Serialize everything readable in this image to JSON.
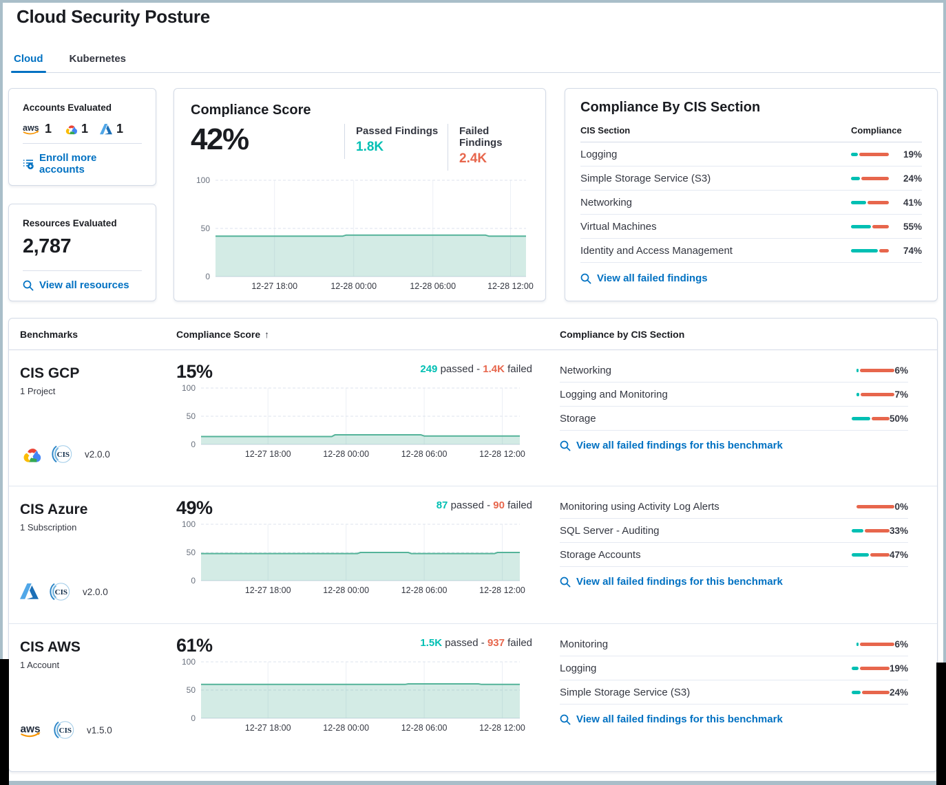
{
  "strings": {
    "passed": "passed",
    "failed": "failed",
    "sep": "-"
  },
  "colors": {
    "teal": "#00BFB3",
    "red": "#E7664C",
    "link_blue": "#0071C2",
    "trend_line": "#54B399",
    "frame": "#A9BEC9"
  },
  "header": {
    "title": "Cloud Security Posture",
    "tabs": [
      {
        "label": "Cloud"
      },
      {
        "label": "Kubernetes"
      }
    ]
  },
  "accounts": {
    "title": "Accounts Evaluated",
    "items": [
      {
        "provider": "aws",
        "count": "1"
      },
      {
        "provider": "gcp",
        "count": "1"
      },
      {
        "provider": "azure",
        "count": "1"
      }
    ],
    "link": "Enroll more accounts"
  },
  "resources": {
    "title": "Resources Evaluated",
    "value": "2,787",
    "link": "View all resources"
  },
  "score": {
    "title": "Compliance Score",
    "value": "42%",
    "passed_label": "Passed Findings",
    "passed_value": "1.8K",
    "failed_label": "Failed Findings",
    "failed_value": "2.4K"
  },
  "cis_card": {
    "title": "Compliance By CIS Section",
    "col_section": "CIS Section",
    "col_compliance": "Compliance",
    "rows": [
      {
        "label": "Logging",
        "pct": 19,
        "value": "19%"
      },
      {
        "label": "Simple Storage Service (S3)",
        "pct": 24,
        "value": "24%"
      },
      {
        "label": "Networking",
        "pct": 41,
        "value": "41%"
      },
      {
        "label": "Virtual Machines",
        "pct": 55,
        "value": "55%"
      },
      {
        "label": "Identity and Access Management",
        "pct": 74,
        "value": "74%"
      }
    ],
    "link": "View all failed findings"
  },
  "benchmarks": {
    "col_benchmarks": "Benchmarks",
    "col_score": "Compliance Score",
    "sort_arrow": "↑",
    "col_cis": "Compliance by CIS Section",
    "rows": [
      {
        "name": "CIS GCP",
        "subtitle": "1 Project",
        "provider": "gcp",
        "version": "v2.0.0",
        "score": "15%",
        "passed": "249",
        "failed": "1.4K",
        "sections": [
          {
            "label": "Networking",
            "pct": 6,
            "value": "6%"
          },
          {
            "label": "Logging and Monitoring",
            "pct": 7,
            "value": "7%"
          },
          {
            "label": "Storage",
            "pct": 50,
            "value": "50%"
          }
        ],
        "link": "View all failed findings for this benchmark"
      },
      {
        "name": "CIS Azure",
        "subtitle": "1 Subscription",
        "provider": "azure",
        "version": "v2.0.0",
        "score": "49%",
        "passed": "87",
        "failed": "90",
        "sections": [
          {
            "label": "Monitoring using Activity Log Alerts",
            "pct": 0,
            "value": "0%"
          },
          {
            "label": "SQL Server - Auditing",
            "pct": 33,
            "value": "33%"
          },
          {
            "label": "Storage Accounts",
            "pct": 47,
            "value": "47%"
          }
        ],
        "link": "View all failed findings for this benchmark"
      },
      {
        "name": "CIS AWS",
        "subtitle": "1 Account",
        "provider": "aws",
        "version": "v1.5.0",
        "score": "61%",
        "passed": "1.5K",
        "failed": "937",
        "sections": [
          {
            "label": "Monitoring",
            "pct": 6,
            "value": "6%"
          },
          {
            "label": "Logging",
            "pct": 19,
            "value": "19%"
          },
          {
            "label": "Simple Storage Service (S3)",
            "pct": 24,
            "value": "24%"
          }
        ],
        "link": "View all failed findings for this benchmark"
      }
    ]
  },
  "chart_data": [
    {
      "id": "overall-compliance-trend",
      "type": "area",
      "x_ticks": [
        "12-27 18:00",
        "12-28 00:00",
        "12-28 06:00",
        "12-28 12:00"
      ],
      "y_ticks": [
        0,
        50,
        100
      ],
      "ylim": [
        0,
        100
      ],
      "tick_pos": [
        19,
        44.5,
        70,
        95
      ],
      "points": [
        [
          0,
          42
        ],
        [
          41,
          42
        ],
        [
          42,
          43
        ],
        [
          87,
          43
        ],
        [
          88,
          42
        ],
        [
          100,
          42
        ]
      ]
    },
    {
      "id": "cis-gcp-trend",
      "type": "area",
      "x_ticks": [
        "12-27 18:00",
        "12-28 00:00",
        "12-28 06:00",
        "12-28 12:00"
      ],
      "y_ticks": [
        0,
        50,
        100
      ],
      "ylim": [
        0,
        100
      ],
      "tick_pos": [
        21,
        45.5,
        70,
        94.5
      ],
      "points": [
        [
          0,
          14
        ],
        [
          41,
          14
        ],
        [
          42,
          17
        ],
        [
          69,
          17
        ],
        [
          70,
          15
        ],
        [
          100,
          15
        ]
      ]
    },
    {
      "id": "cis-azure-trend",
      "type": "area",
      "x_ticks": [
        "12-27 18:00",
        "12-28 00:00",
        "12-28 06:00",
        "12-28 12:00"
      ],
      "y_ticks": [
        0,
        50,
        100
      ],
      "ylim": [
        0,
        100
      ],
      "tick_pos": [
        21,
        45.5,
        70,
        94.5
      ],
      "points": [
        [
          0,
          48
        ],
        [
          49,
          48
        ],
        [
          50,
          50
        ],
        [
          65,
          50
        ],
        [
          66,
          48
        ],
        [
          92,
          48
        ],
        [
          93,
          50
        ],
        [
          100,
          50
        ]
      ]
    },
    {
      "id": "cis-aws-trend",
      "type": "area",
      "x_ticks": [
        "12-27 18:00",
        "12-28 00:00",
        "12-28 06:00",
        "12-28 12:00"
      ],
      "y_ticks": [
        0,
        50,
        100
      ],
      "ylim": [
        0,
        100
      ],
      "tick_pos": [
        21,
        45.5,
        70,
        94.5
      ],
      "points": [
        [
          0,
          60
        ],
        [
          64,
          60
        ],
        [
          65,
          61
        ],
        [
          87,
          61
        ],
        [
          88,
          60
        ],
        [
          100,
          60
        ]
      ]
    }
  ]
}
